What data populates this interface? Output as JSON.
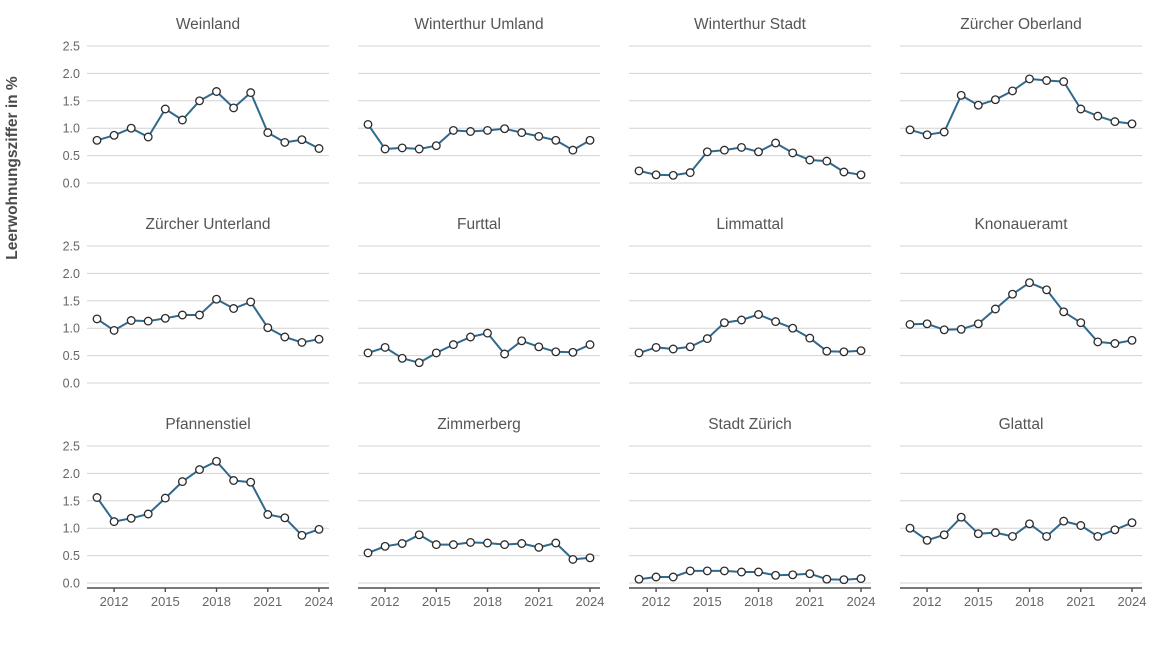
{
  "figure": {
    "ylabel": "Leerwohnungsziffer in %"
  },
  "chart_data": {
    "type": "line",
    "title": "",
    "xlabel": "",
    "ylabel": "Leerwohnungsziffer in %",
    "x": [
      2011,
      2012,
      2013,
      2014,
      2015,
      2016,
      2017,
      2018,
      2019,
      2020,
      2021,
      2022,
      2023,
      2024
    ],
    "xticks": [
      2012,
      2015,
      2018,
      2021,
      2024
    ],
    "yticks": [
      0.0,
      0.5,
      1.0,
      1.5,
      2.0,
      2.5
    ],
    "ylim": [
      0,
      2.5
    ],
    "xlim": [
      2010.5,
      2024.5
    ],
    "grid": true,
    "legend": false,
    "layout": {
      "rows": 3,
      "cols": 4
    },
    "marker": "open-circle",
    "panels": [
      {
        "name": "Weinland",
        "values": [
          0.78,
          0.87,
          1.0,
          0.84,
          1.35,
          1.15,
          1.5,
          1.67,
          1.37,
          1.65,
          0.92,
          0.74,
          0.79,
          0.63
        ]
      },
      {
        "name": "Winterthur Umland",
        "values": [
          1.07,
          0.62,
          0.64,
          0.62,
          0.68,
          0.96,
          0.94,
          0.96,
          0.99,
          0.92,
          0.85,
          0.78,
          0.6,
          0.78
        ]
      },
      {
        "name": "Winterthur Stadt",
        "values": [
          0.22,
          0.15,
          0.14,
          0.19,
          0.57,
          0.6,
          0.65,
          0.57,
          0.73,
          0.55,
          0.42,
          0.4,
          0.2,
          0.15
        ]
      },
      {
        "name": "Zürcher Oberland",
        "values": [
          0.97,
          0.88,
          0.93,
          1.6,
          1.42,
          1.52,
          1.68,
          1.9,
          1.87,
          1.85,
          1.35,
          1.22,
          1.12,
          1.08
        ]
      },
      {
        "name": "Zürcher Unterland",
        "values": [
          1.17,
          0.96,
          1.14,
          1.13,
          1.18,
          1.24,
          1.24,
          1.53,
          1.36,
          1.48,
          1.01,
          0.84,
          0.74,
          0.8
        ]
      },
      {
        "name": "Furttal",
        "values": [
          0.55,
          0.65,
          0.45,
          0.37,
          0.55,
          0.7,
          0.84,
          0.91,
          0.53,
          0.77,
          0.66,
          0.57,
          0.56,
          0.7
        ]
      },
      {
        "name": "Limmattal",
        "values": [
          0.55,
          0.65,
          0.62,
          0.66,
          0.81,
          1.1,
          1.15,
          1.25,
          1.12,
          1.0,
          0.82,
          0.58,
          0.57,
          0.59
        ]
      },
      {
        "name": "Knonaueramt",
        "values": [
          1.07,
          1.08,
          0.97,
          0.98,
          1.08,
          1.35,
          1.62,
          1.83,
          1.7,
          1.3,
          1.1,
          0.75,
          0.72,
          0.78
        ]
      },
      {
        "name": "Pfannenstiel",
        "values": [
          1.56,
          1.12,
          1.18,
          1.26,
          1.55,
          1.85,
          2.07,
          2.22,
          1.87,
          1.84,
          1.25,
          1.19,
          0.87,
          0.98
        ]
      },
      {
        "name": "Zimmerberg",
        "values": [
          0.55,
          0.67,
          0.72,
          0.88,
          0.7,
          0.7,
          0.74,
          0.73,
          0.7,
          0.72,
          0.65,
          0.73,
          0.43,
          0.46
        ]
      },
      {
        "name": "Stadt Zürich",
        "values": [
          0.07,
          0.11,
          0.11,
          0.22,
          0.22,
          0.22,
          0.2,
          0.2,
          0.14,
          0.15,
          0.17,
          0.07,
          0.06,
          0.08
        ]
      },
      {
        "name": "Glattal",
        "values": [
          1.0,
          0.78,
          0.88,
          1.2,
          0.9,
          0.92,
          0.85,
          1.08,
          0.85,
          1.13,
          1.05,
          0.85,
          0.97,
          1.1
        ]
      }
    ],
    "style": {
      "line_color": "#31698e",
      "marker_stroke": "#2b2b2b",
      "marker_fill": "#ffffff",
      "grid_color": "#d3d3d3",
      "axis_color": "#4d4d4d",
      "title_color": "#555555",
      "tick_label_color": "#666666",
      "ylabel_color": "#4a4a4a",
      "background": "#ffffff"
    }
  }
}
